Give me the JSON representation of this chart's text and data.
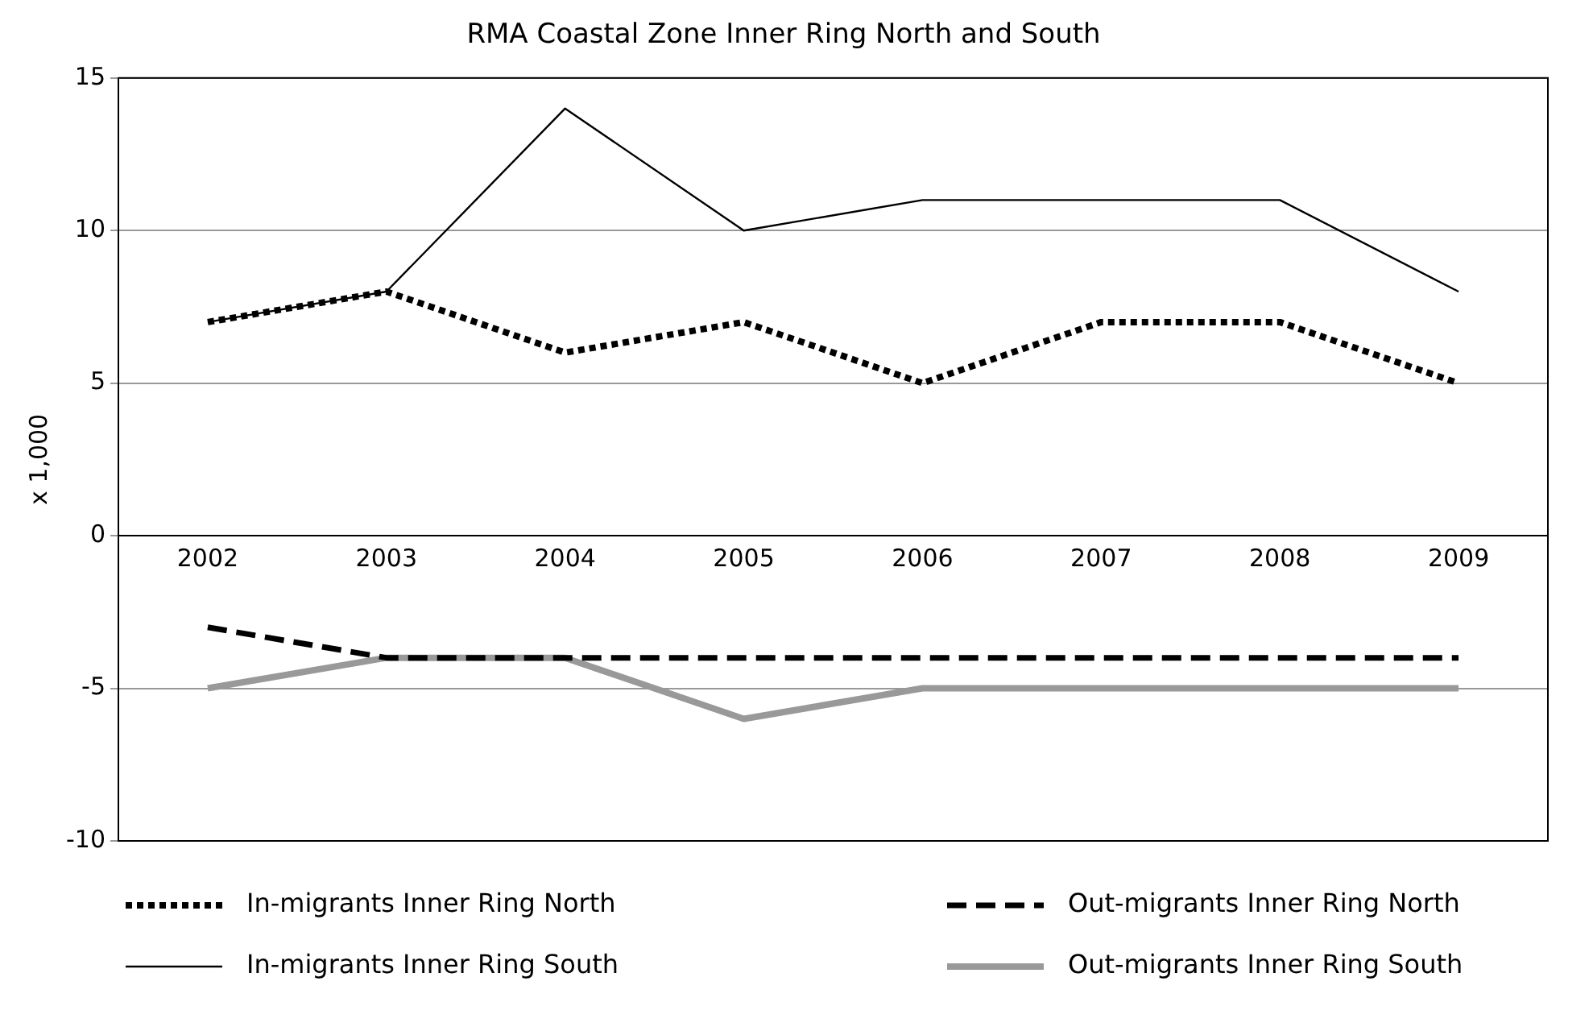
{
  "chart_data": {
    "type": "line",
    "title": "RMA Coastal Zone Inner Ring North and South",
    "ylabel": "x 1,000",
    "categories": [
      "2002",
      "2003",
      "2004",
      "2005",
      "2006",
      "2007",
      "2008",
      "2009"
    ],
    "series": [
      {
        "name": "In-migrants Inner Ring North",
        "color": "#000000",
        "line_style": "dotted",
        "values": [
          7,
          8,
          6,
          7,
          5,
          7,
          7,
          5
        ]
      },
      {
        "name": "Out-migrants Inner Ring North",
        "color": "#000000",
        "line_style": "dashed",
        "values": [
          -3,
          -4,
          -4,
          -4,
          -4,
          -4,
          -4,
          -4
        ]
      },
      {
        "name": "In-migrants Inner Ring South",
        "color": "#000000",
        "line_style": "solid",
        "values": [
          7,
          8,
          14,
          10,
          11,
          11,
          11,
          8
        ]
      },
      {
        "name": "Out-migrants Inner Ring South",
        "color": "#999999",
        "line_style": "solid",
        "values": [
          -5,
          -4,
          -4,
          -6,
          -5,
          -5,
          -5,
          -5
        ]
      }
    ],
    "ylim": [
      -10,
      15
    ],
    "yticks": [
      -10,
      -5,
      0,
      5,
      10,
      15
    ],
    "grid": "y",
    "legend": "bottom",
    "marker": "none"
  }
}
